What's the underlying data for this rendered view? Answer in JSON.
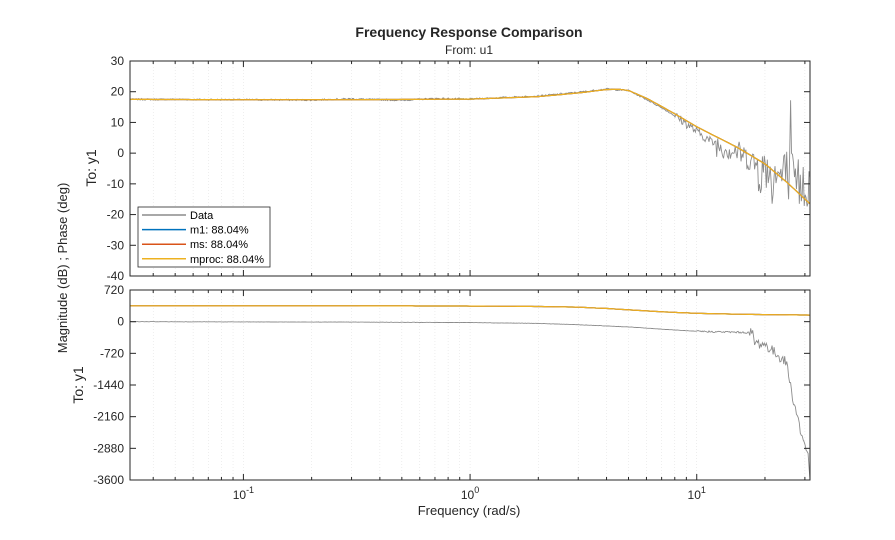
{
  "chart_data": {
    "type": "line",
    "title": "Frequency Response Comparison",
    "subtitle": "From: u1",
    "xlabel": "Frequency  (rad/s)",
    "ylabel": "Magnitude (dB) ; Phase (deg)",
    "x_scale": "log",
    "xlim": [
      0.0316,
      31.6
    ],
    "x_ticks": [
      {
        "value": 0.1,
        "base": "10",
        "exp": "-1"
      },
      {
        "value": 1,
        "base": "10",
        "exp": "0"
      },
      {
        "value": 10,
        "base": "10",
        "exp": "1"
      }
    ],
    "colors": {
      "data": "#8c8c8c",
      "m1": "#0072bd",
      "ms": "#d95319",
      "mproc": "#edb120",
      "axes": "#262626",
      "grid_minor": "#dcdcdc"
    },
    "legend": {
      "location": "lower-left of magnitude panel",
      "entries": [
        {
          "label": "Data",
          "color": "#8c8c8c"
        },
        {
          "label": "m1: 88.04%",
          "color": "#0072bd"
        },
        {
          "label": "ms: 88.04%",
          "color": "#d95319"
        },
        {
          "label": "mproc: 88.04%",
          "color": "#edb120"
        }
      ]
    },
    "panels": [
      {
        "name": "magnitude",
        "ylabel": "To: y1",
        "unit": "dB",
        "ylim": [
          -40,
          30
        ],
        "y_ticks": [
          30,
          20,
          10,
          0,
          -10,
          -20,
          -30,
          -40
        ],
        "series": [
          {
            "name": "Data",
            "noisy": true,
            "x": [
              0.0316,
              0.05,
              0.1,
              0.2,
              0.3,
              0.5,
              0.7,
              1,
              1.5,
              2,
              3,
              4,
              5,
              6,
              7,
              8,
              9,
              10,
              12,
              15,
              18,
              20,
              22,
              25,
              28,
              31.6
            ],
            "y": [
              17.5,
              17.5,
              17.4,
              17.3,
              17.7,
              17.2,
              17.8,
              17.6,
              18.2,
              18.6,
              19.8,
              20.9,
              20.4,
              17.5,
              14.8,
              12.2,
              9.6,
              7.0,
              3.0,
              0.5,
              -3.0,
              -6.5,
              -8.0,
              -7.0,
              -10.0,
              -10.0
            ]
          },
          {
            "name": "m1: 88.04%",
            "x": [
              0.0316,
              0.1,
              0.3,
              1,
              2,
              3,
              4,
              4.5,
              5,
              6,
              7,
              8,
              10,
              12,
              15,
              20,
              25,
              31.6
            ],
            "y": [
              17.5,
              17.4,
              17.4,
              17.6,
              18.4,
              19.6,
              20.7,
              20.8,
              20.4,
              17.9,
              15.2,
              12.8,
              8.6,
              5.6,
              2.0,
              -3.5,
              -9.5,
              -16.5
            ]
          },
          {
            "name": "ms: 88.04%",
            "x": [
              0.0316,
              0.1,
              0.3,
              1,
              2,
              3,
              4,
              4.5,
              5,
              6,
              7,
              8,
              10,
              12,
              15,
              20,
              25,
              31.6
            ],
            "y": [
              17.5,
              17.4,
              17.4,
              17.6,
              18.4,
              19.6,
              20.7,
              20.8,
              20.4,
              17.9,
              15.2,
              12.8,
              8.6,
              5.6,
              2.0,
              -3.5,
              -9.5,
              -16.5
            ]
          },
          {
            "name": "mproc: 88.04%",
            "x": [
              0.0316,
              0.1,
              0.3,
              1,
              2,
              3,
              4,
              4.5,
              5,
              6,
              7,
              8,
              10,
              12,
              15,
              20,
              25,
              31.6
            ],
            "y": [
              17.5,
              17.4,
              17.4,
              17.6,
              18.4,
              19.6,
              20.7,
              20.8,
              20.4,
              17.9,
              15.2,
              12.8,
              8.6,
              5.6,
              2.0,
              -3.5,
              -9.5,
              -16.5
            ]
          }
        ]
      },
      {
        "name": "phase",
        "ylabel": "To: y1",
        "unit": "deg",
        "ylim": [
          -3600,
          720
        ],
        "y_ticks": [
          720,
          0,
          -720,
          -1440,
          -2160,
          -2880,
          -3600
        ],
        "series": [
          {
            "name": "Data",
            "noisy": true,
            "x": [
              0.0316,
              0.1,
              0.3,
              1,
              2,
              3,
              5,
              7,
              10,
              12,
              15,
              16,
              17,
              17.6,
              18,
              20,
              22,
              24,
              25,
              26,
              27,
              28,
              29,
              30,
              31,
              31.6
            ],
            "y": [
              0,
              -5,
              -10,
              -20,
              -40,
              -70,
              -120,
              -170,
              -220,
              -230,
              -240,
              -245,
              -250,
              -260,
              -480,
              -520,
              -700,
              -850,
              -960,
              -1500,
              -1900,
              -2200,
              -2600,
              -2800,
              -3000,
              -3600
            ]
          },
          {
            "name": "m1: 88.04%",
            "x": [
              0.0316,
              0.1,
              0.3,
              1,
              2,
              3,
              4,
              5,
              7,
              10,
              15,
              20,
              31.6
            ],
            "y": [
              360,
              360,
              360,
              355,
              345,
              330,
              300,
              270,
              225,
              190,
              170,
              160,
              150
            ]
          },
          {
            "name": "ms: 88.04%",
            "x": [
              0.0316,
              0.1,
              0.3,
              1,
              2,
              3,
              4,
              5,
              7,
              10,
              15,
              20,
              31.6
            ],
            "y": [
              360,
              360,
              360,
              355,
              345,
              330,
              300,
              270,
              225,
              190,
              170,
              160,
              150
            ]
          },
          {
            "name": "mproc: 88.04%",
            "x": [
              0.0316,
              0.1,
              0.3,
              1,
              2,
              3,
              4,
              5,
              7,
              10,
              15,
              20,
              31.6
            ],
            "y": [
              360,
              360,
              360,
              355,
              345,
              330,
              300,
              270,
              225,
              190,
              170,
              160,
              150
            ]
          }
        ]
      }
    ]
  }
}
